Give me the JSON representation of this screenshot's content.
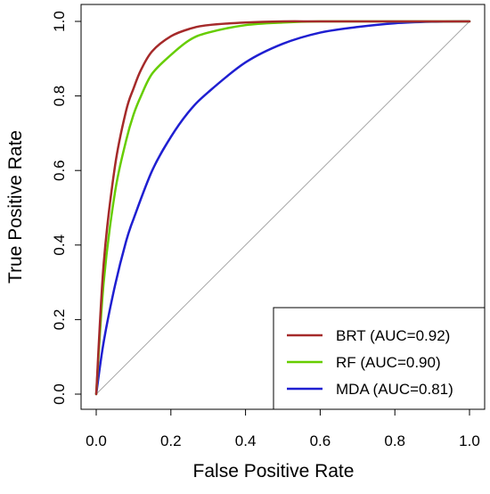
{
  "chart_data": {
    "type": "line",
    "title": "",
    "xlabel": "False Positive Rate",
    "ylabel": "True Positive Rate",
    "xlim": [
      0,
      1
    ],
    "ylim": [
      0,
      1
    ],
    "x_ticks": [
      "0.0",
      "0.2",
      "0.4",
      "0.6",
      "0.8",
      "1.0"
    ],
    "y_ticks": [
      "0.0",
      "0.2",
      "0.4",
      "0.6",
      "0.8",
      "1.0"
    ],
    "grid": false,
    "legend_position": "bottom-right",
    "reference_line": {
      "from": [
        0,
        0
      ],
      "to": [
        1,
        1
      ],
      "color": "#a6a6a6"
    },
    "series": [
      {
        "name": "BRT (AUC=0.92)",
        "color": "#a52a2a",
        "x": [
          0,
          0.02,
          0.05,
          0.08,
          0.1,
          0.12,
          0.15,
          0.2,
          0.25,
          0.3,
          0.4,
          0.5,
          0.6,
          0.8,
          1.0
        ],
        "y": [
          0,
          0.35,
          0.61,
          0.76,
          0.82,
          0.87,
          0.92,
          0.96,
          0.98,
          0.99,
          0.997,
          1.0,
          1.0,
          1.0,
          1.0
        ]
      },
      {
        "name": "RF (AUC=0.90)",
        "color": "#66cd00",
        "x": [
          0,
          0.02,
          0.05,
          0.08,
          0.1,
          0.12,
          0.15,
          0.2,
          0.25,
          0.3,
          0.4,
          0.5,
          0.6,
          0.8,
          1.0
        ],
        "y": [
          0,
          0.3,
          0.54,
          0.68,
          0.75,
          0.8,
          0.86,
          0.91,
          0.95,
          0.97,
          0.99,
          0.997,
          1.0,
          1.0,
          1.0
        ]
      },
      {
        "name": "MDA (AUC=0.81)",
        "color": "#1f1fd1",
        "x": [
          0,
          0.02,
          0.05,
          0.08,
          0.1,
          0.15,
          0.2,
          0.25,
          0.3,
          0.4,
          0.5,
          0.6,
          0.7,
          0.8,
          0.9,
          1.0
        ],
        "y": [
          0,
          0.14,
          0.29,
          0.41,
          0.47,
          0.6,
          0.69,
          0.76,
          0.81,
          0.89,
          0.94,
          0.97,
          0.985,
          0.995,
          0.999,
          1.0
        ]
      }
    ]
  }
}
